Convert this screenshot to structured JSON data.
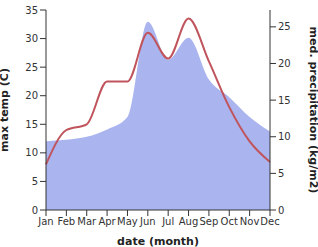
{
  "chart_data": {
    "type": "line",
    "x_label": "date (month)",
    "y_label": "max temp (C)",
    "y2_label": "med. precipitation (kg/m2)",
    "categories": [
      "Jan",
      "Feb",
      "Mar",
      "Apr",
      "May",
      "Jun",
      "Jul",
      "Aug",
      "Sep",
      "Oct",
      "Nov",
      "Dec"
    ],
    "series": [
      {
        "name": "med. precipitation",
        "type": "area",
        "axis": "y2",
        "color": "#aab4ef",
        "values": [
          9.4,
          9.6,
          10,
          11,
          12.7,
          25.7,
          20.5,
          23.5,
          17.8,
          15.4,
          12.7,
          10.7
        ]
      },
      {
        "name": "max temp",
        "type": "line",
        "color": "#c0545c",
        "values": [
          8,
          14,
          15,
          22.5,
          22.5,
          31,
          26.5,
          33.5,
          26,
          18,
          12,
          8.4
        ]
      }
    ],
    "ylim": [
      0,
      35
    ],
    "yticks": [
      0,
      5,
      10,
      15,
      20,
      25,
      30,
      35
    ],
    "y2lim": [
      0,
      27.3
    ],
    "y2ticks": [
      0,
      5,
      10,
      15,
      20,
      25
    ],
    "grid": false
  }
}
